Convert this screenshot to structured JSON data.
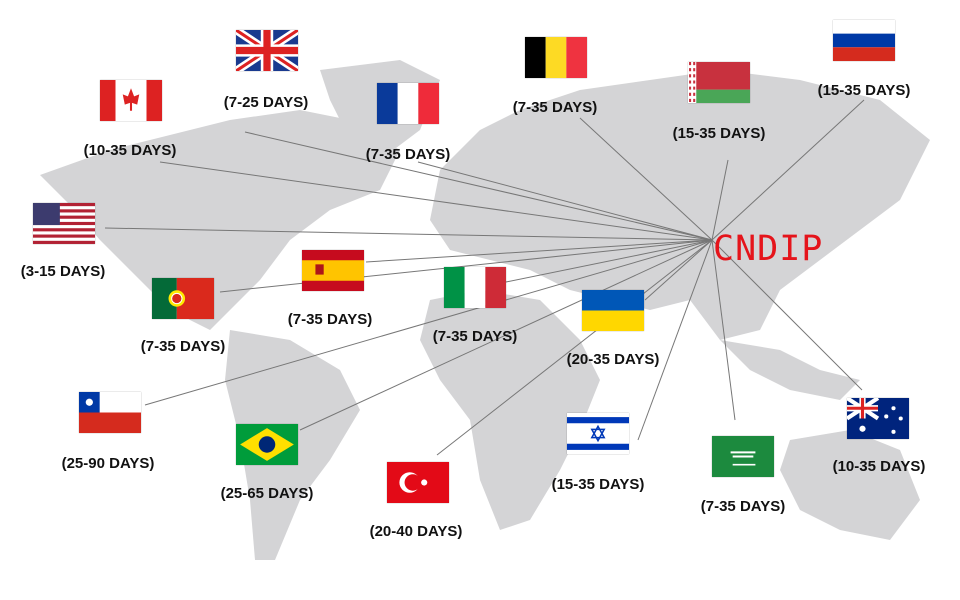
{
  "hub": {
    "label": "CNDIP",
    "color": "#e5141b"
  },
  "destinations": [
    {
      "country": "United Kingdom",
      "flag_icon": "uk-flag-icon",
      "days": "(7-25 DAYS)"
    },
    {
      "country": "Canada",
      "flag_icon": "canada-flag-icon",
      "days": "(10-35 DAYS)"
    },
    {
      "country": "France",
      "flag_icon": "france-flag-icon",
      "days": "(7-35 DAYS)"
    },
    {
      "country": "Belgium",
      "flag_icon": "belgium-flag-icon",
      "days": "(7-35 DAYS)"
    },
    {
      "country": "Belarus",
      "flag_icon": "belarus-flag-icon",
      "days": "(15-35 DAYS)"
    },
    {
      "country": "Russia",
      "flag_icon": "russia-flag-icon",
      "days": "(15-35 DAYS)"
    },
    {
      "country": "United States",
      "flag_icon": "usa-flag-icon",
      "days": "(3-15 DAYS)"
    },
    {
      "country": "Spain",
      "flag_icon": "spain-flag-icon",
      "days": "(7-35 DAYS)"
    },
    {
      "country": "Portugal",
      "flag_icon": "portugal-flag-icon",
      "days": "(7-35 DAYS)"
    },
    {
      "country": "Italy",
      "flag_icon": "italy-flag-icon",
      "days": "(7-35 DAYS)"
    },
    {
      "country": "Ukraine",
      "flag_icon": "ukraine-flag-icon",
      "days": "(20-35 DAYS)"
    },
    {
      "country": "Chile",
      "flag_icon": "chile-flag-icon",
      "days": "(25-90 DAYS)"
    },
    {
      "country": "Brazil",
      "flag_icon": "brazil-flag-icon",
      "days": "(25-65 DAYS)"
    },
    {
      "country": "Turkey",
      "flag_icon": "turkey-flag-icon",
      "days": "(20-40 DAYS)"
    },
    {
      "country": "Israel",
      "flag_icon": "israel-flag-icon",
      "days": "(15-35 DAYS)"
    },
    {
      "country": "Saudi Arabia",
      "flag_icon": "saudi-flag-icon",
      "days": "(7-35 DAYS)"
    },
    {
      "country": "Australia",
      "flag_icon": "australia-flag-icon",
      "days": "(10-35 DAYS)"
    }
  ]
}
